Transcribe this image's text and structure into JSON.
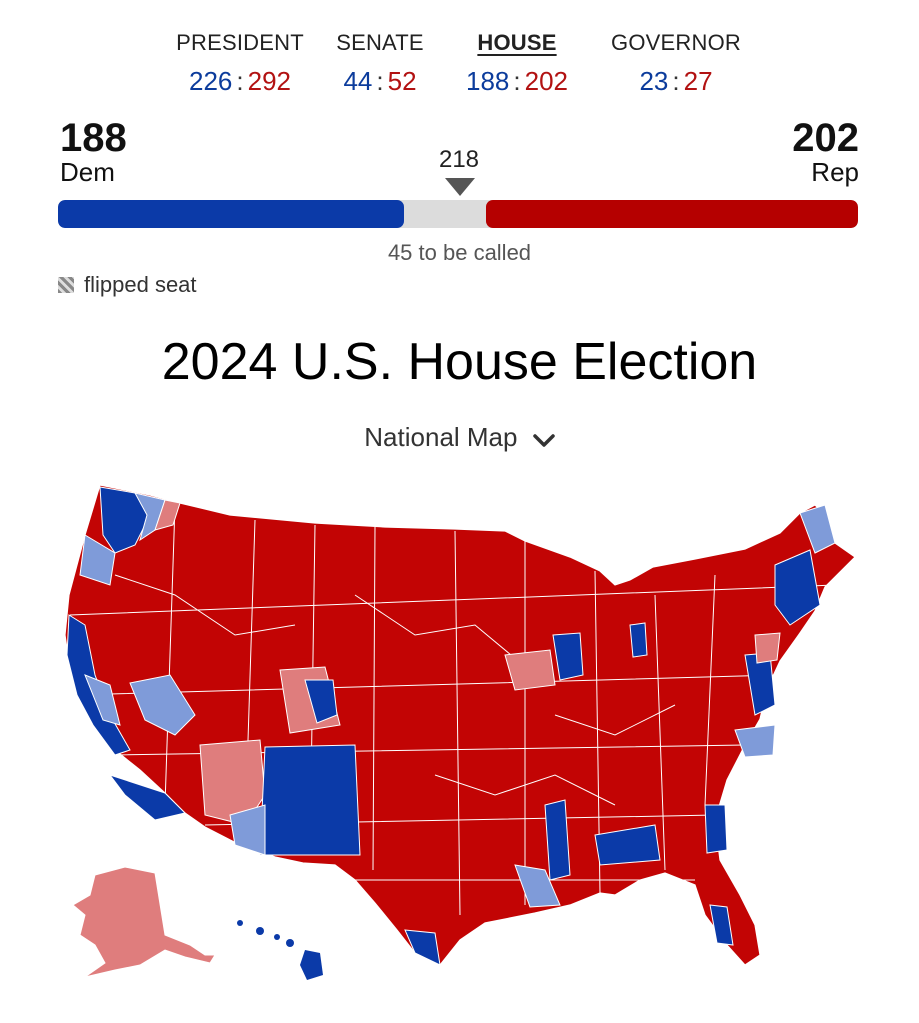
{
  "tabs": [
    {
      "label": "PRESIDENT",
      "dem": "226",
      "rep": "292"
    },
    {
      "label": "SENATE",
      "dem": "44",
      "rep": "52"
    },
    {
      "label": "HOUSE",
      "dem": "188",
      "rep": "202"
    },
    {
      "label": "GOVERNOR",
      "dem": "23",
      "rep": "27"
    }
  ],
  "active_tab": "HOUSE",
  "separator": ":",
  "tally": {
    "dem_count": "188",
    "dem_label": "Dem",
    "rep_count": "202",
    "rep_label": "Rep",
    "threshold": "218",
    "to_be_called": "45 to be called",
    "dem_seats": 188,
    "rep_seats": 202,
    "total_seats": 435
  },
  "legend": {
    "flipped": "flipped seat"
  },
  "title": "2024 U.S. House Election",
  "view_selector": "National Map",
  "colors": {
    "dem": "#0b3aa8",
    "rep": "#b50000",
    "dem_flip": "#7f9bd9",
    "rep_flip": "#df7d7d",
    "uncalled": "#dcdcdc"
  },
  "icons": {
    "dropdown": "chevron-down-icon",
    "flipped": "hatch-swatch-icon"
  }
}
